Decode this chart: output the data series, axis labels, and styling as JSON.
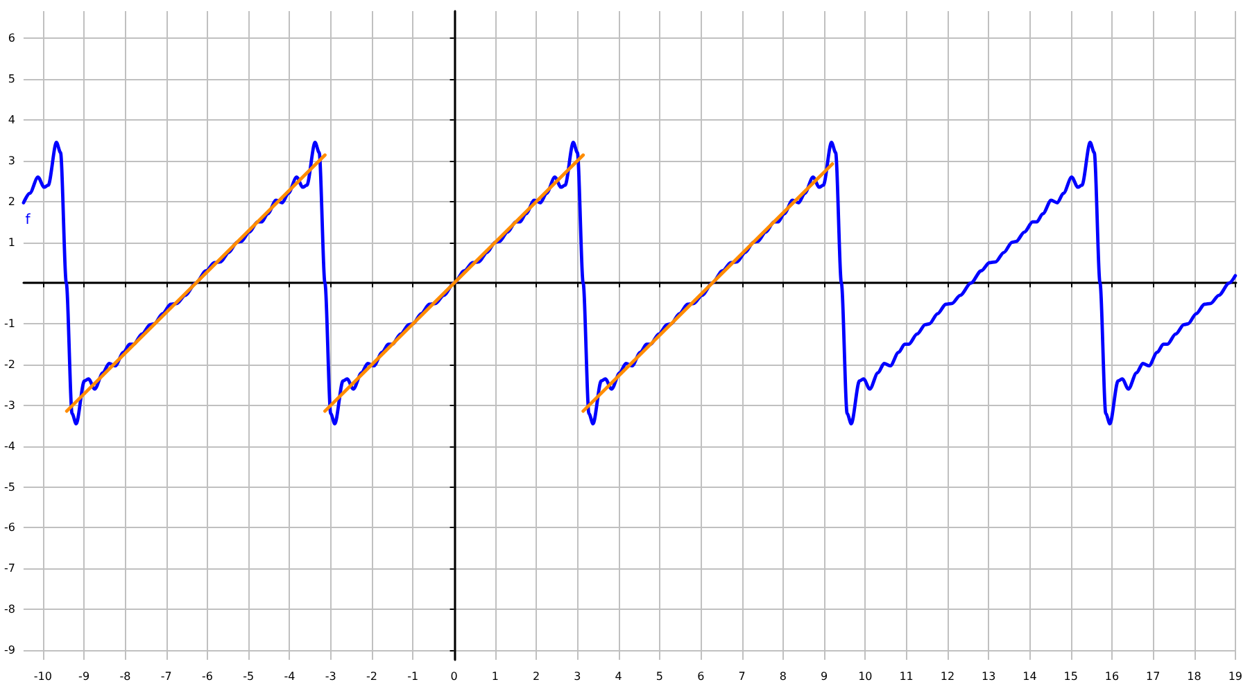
{
  "chart_data": {
    "type": "line",
    "xlim": [
      -10.47,
      19.02
    ],
    "ylim": [
      -9.24,
      6.67
    ],
    "xticks": [
      -10,
      -9,
      -8,
      -7,
      -6,
      -5,
      -4,
      -3,
      -2,
      -1,
      {
        "value": 0,
        "label": "0"
      },
      1,
      2,
      3,
      4,
      5,
      6,
      7,
      8,
      9,
      10,
      11,
      12,
      13,
      14,
      15,
      16,
      17,
      18,
      19
    ],
    "yticks": [
      -9,
      -8,
      -7,
      -6,
      -5,
      -4,
      -3,
      -2,
      -1,
      {
        "value": 0,
        "label": null
      },
      1,
      2,
      3,
      4,
      5,
      6
    ],
    "grid": true,
    "legend": false,
    "marker": "none",
    "line_style": "solid",
    "series": [
      {
        "name": "f",
        "color": "#0000ff",
        "x": [
          -10.47,
          -10.32,
          -10.12,
          -9.97,
          -9.87,
          -9.67,
          -9.57,
          -9.43,
          -9.29,
          -9.19,
          -8.99,
          -8.89,
          -8.74,
          -8.54,
          -8.39,
          -8.24,
          -8.04,
          -7.89,
          -7.79,
          -7.59,
          -7.39,
          -7.29,
          -7.09,
          -6.89,
          -6.74,
          -6.54,
          -6.28,
          -6.03,
          -5.83,
          -5.68,
          -5.48,
          -5.28,
          -5.18,
          -4.98,
          -4.78,
          -4.68,
          -4.53,
          -4.33,
          -4.18,
          -4.03,
          -3.83,
          -3.68,
          -3.58,
          -3.38,
          -3.28,
          -3.14,
          -3.0,
          -2.9,
          -2.7,
          -2.6,
          -2.45,
          -2.25,
          -2.1,
          -1.95,
          -1.75,
          -1.6,
          -1.5,
          -1.3,
          -1.1,
          -1.0,
          -0.8,
          -0.6,
          -0.45,
          -0.25,
          0,
          0.25,
          0.45,
          0.6,
          0.8,
          1.0,
          1.1,
          1.3,
          1.5,
          1.6,
          1.75,
          1.95,
          2.1,
          2.25,
          2.45,
          2.6,
          2.7,
          2.9,
          3.0,
          3.14,
          3.28,
          3.38,
          3.58,
          3.68,
          3.83,
          4.03,
          4.18,
          4.33,
          4.53,
          4.68,
          4.78,
          4.98,
          5.18,
          5.28,
          5.48,
          5.68,
          5.83,
          6.03,
          6.28,
          6.53,
          6.73,
          6.88,
          7.08,
          7.28,
          7.38,
          7.58,
          7.78,
          7.88,
          8.03,
          8.23,
          8.38,
          8.53,
          8.73,
          8.88,
          8.98,
          9.18,
          9.28,
          9.42,
          9.56,
          9.66,
          9.86,
          9.96,
          10.11,
          10.31,
          10.46,
          10.61,
          10.81,
          10.96,
          11.06,
          11.26,
          11.46,
          11.56,
          11.76,
          11.96,
          12.11,
          12.31,
          12.57,
          12.82,
          13.02,
          13.17,
          13.37,
          13.57,
          13.67,
          13.87,
          14.07,
          14.17,
          14.32,
          14.52,
          14.67,
          14.82,
          15.02,
          15.17,
          15.27,
          15.47,
          15.57,
          15.71,
          15.85,
          15.95,
          16.15,
          16.25,
          16.4,
          16.6,
          16.75,
          16.9,
          17.1,
          17.25,
          17.35,
          17.55,
          17.75,
          17.85,
          18.05,
          18.25,
          18.4,
          18.6,
          18.85,
          19.0
        ],
        "values": [
          1.97,
          2.2,
          2.6,
          2.35,
          2.4,
          3.45,
          3.2,
          0,
          -3.2,
          -3.45,
          -2.4,
          -2.35,
          -2.6,
          -2.2,
          -1.97,
          -2.03,
          -1.7,
          -1.5,
          -1.5,
          -1.25,
          -1.02,
          -1.0,
          -0.75,
          -0.52,
          -0.5,
          -0.3,
          0,
          0.3,
          0.5,
          0.52,
          0.75,
          1.0,
          1.02,
          1.25,
          1.5,
          1.5,
          1.7,
          2.03,
          1.97,
          2.2,
          2.6,
          2.35,
          2.4,
          3.45,
          3.2,
          0,
          -3.2,
          -3.45,
          -2.4,
          -2.35,
          -2.6,
          -2.2,
          -1.97,
          -2.03,
          -1.7,
          -1.5,
          -1.5,
          -1.25,
          -1.02,
          -1.0,
          -0.75,
          -0.52,
          -0.5,
          -0.3,
          0,
          0.3,
          0.5,
          0.52,
          0.75,
          1.0,
          1.02,
          1.25,
          1.5,
          1.5,
          1.7,
          2.03,
          1.97,
          2.2,
          2.6,
          2.35,
          2.4,
          3.45,
          3.2,
          0,
          -3.2,
          -3.45,
          -2.4,
          -2.35,
          -2.6,
          -2.2,
          -1.97,
          -2.03,
          -1.7,
          -1.5,
          -1.5,
          -1.25,
          -1.02,
          -1.0,
          -0.75,
          -0.52,
          -0.5,
          -0.3,
          0,
          0.3,
          0.5,
          0.52,
          0.75,
          1.0,
          1.02,
          1.25,
          1.5,
          1.5,
          1.7,
          2.03,
          1.97,
          2.2,
          2.6,
          2.35,
          2.4,
          3.45,
          3.2,
          0,
          -3.2,
          -3.45,
          -2.4,
          -2.35,
          -2.6,
          -2.2,
          -1.97,
          -2.03,
          -1.7,
          -1.5,
          -1.5,
          -1.25,
          -1.02,
          -1.0,
          -0.75,
          -0.52,
          -0.5,
          -0.3,
          0,
          0.3,
          0.5,
          0.52,
          0.75,
          1.0,
          1.02,
          1.25,
          1.5,
          1.5,
          1.7,
          2.03,
          1.97,
          2.2,
          2.6,
          2.35,
          2.4,
          3.45,
          3.2,
          0,
          -3.2,
          -3.45,
          -2.4,
          -2.35,
          -2.6,
          -2.2,
          -1.97,
          -2.03,
          -1.7,
          -1.5,
          -1.5,
          -1.25,
          -1.02,
          -1.0,
          -0.75,
          -0.52,
          -0.5,
          -0.3,
          0,
          0.18
        ]
      },
      {
        "color": "#ff8c00",
        "x": [
          -9.42,
          -3.14
        ],
        "values": [
          -3.14,
          3.14
        ]
      },
      {
        "color": "#ff8c00",
        "x": [
          -3.14,
          3.14
        ],
        "values": [
          -3.14,
          3.14
        ]
      },
      {
        "color": "#ff8c00",
        "x": [
          3.14,
          9.2
        ],
        "values": [
          -3.14,
          2.92
        ]
      }
    ]
  }
}
